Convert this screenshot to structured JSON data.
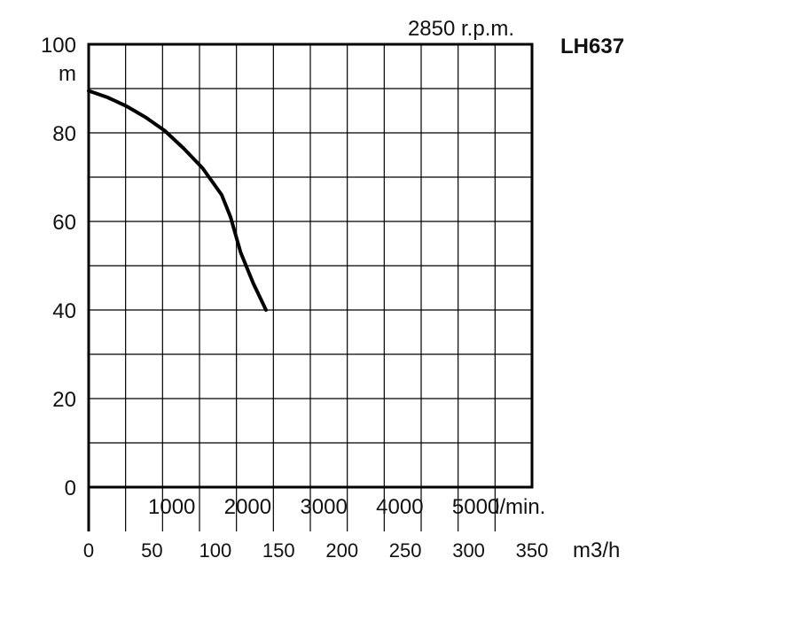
{
  "chart_data": {
    "type": "line",
    "title": "LH637",
    "subtitle": "2850 r.p.m.",
    "ylabel": "m",
    "xlabel": "m3/h",
    "secondary_x_unit": "l/min.",
    "ylim": [
      0,
      100
    ],
    "xlim": [
      0,
      350
    ],
    "y_ticks": [
      "0",
      "20",
      "40",
      "60",
      "80",
      "100"
    ],
    "x_ticks": [
      "0",
      "50",
      "100",
      "150",
      "200",
      "250",
      "300",
      "350"
    ],
    "secondary_x_ticks": [
      "1000",
      "2000",
      "3000",
      "4000",
      "5000"
    ],
    "grid": true,
    "series": [
      {
        "x": [
          0,
          15,
          30,
          45,
          60,
          75,
          90,
          105,
          112,
          120,
          130,
          140
        ],
        "y": [
          89.5,
          88,
          86,
          83.5,
          80.5,
          76.5,
          72,
          66,
          61,
          53,
          46,
          40
        ]
      }
    ],
    "colors": {
      "line": "#000000",
      "grid": "#000000"
    }
  }
}
